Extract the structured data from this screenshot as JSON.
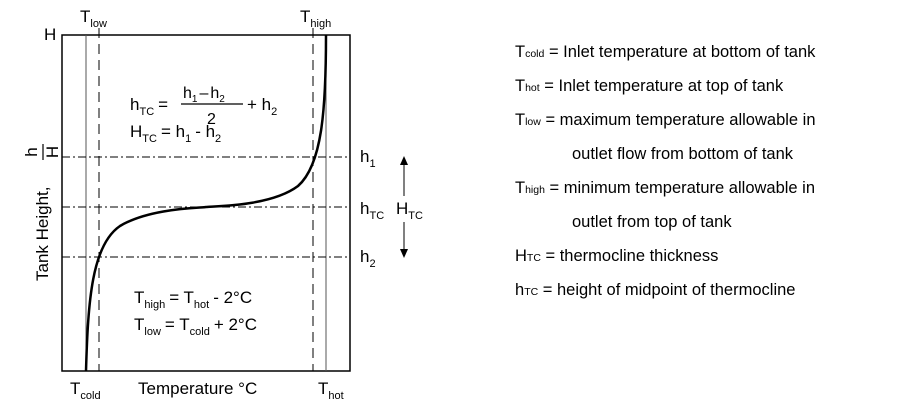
{
  "diagram": {
    "axis_ylabel": "Tank Height,",
    "axis_ylabel_frac": {
      "num": "h",
      "den": "H"
    },
    "xlabel": "Temperature °C",
    "top_label": "H",
    "t_low": {
      "main": "T",
      "sub": "low"
    },
    "t_high": {
      "main": "T",
      "sub": "high"
    },
    "t_cold": {
      "main": "T",
      "sub": "cold"
    },
    "t_hot": {
      "main": "T",
      "sub": "hot"
    },
    "h1": {
      "main": "h",
      "sub": "1"
    },
    "h2": {
      "main": "h",
      "sub": "2"
    },
    "htc": {
      "main": "h",
      "sub": "TC"
    },
    "Htc": {
      "main": "H",
      "sub": "TC"
    },
    "eq1": {
      "lhs_main": "h",
      "lhs_sub": "TC",
      "eq": "=",
      "num": "h",
      "num_sub1": "1",
      "minus": "–",
      "num_sub2": "2",
      "den": "2",
      "plus": "+ h",
      "plus_sub": "2"
    },
    "eq2": {
      "main": "H",
      "sub": "TC",
      "rest": "= h",
      "s1": "1",
      "mid": "- h",
      "s2": "2"
    },
    "eq3": {
      "main": "T",
      "sub": "high",
      "mid": "= T",
      "sub2": "hot",
      "rest": "- 2°C"
    },
    "eq4": {
      "main": "T",
      "sub": "low",
      "mid": "= T",
      "sub2": "cold",
      "rest": "+ 2°C"
    }
  },
  "legend": [
    {
      "main": "T",
      "sub": "cold",
      "text": " = Inlet temperature at bottom of tank"
    },
    {
      "main": "T",
      "sub": "hot",
      "text": " = Inlet temperature at top of tank"
    },
    {
      "main": "T",
      "sub": "low",
      "text": " = maximum temperature allowable in"
    },
    {
      "main": "",
      "sub": "",
      "text": "outlet flow from bottom of tank"
    },
    {
      "main": "T",
      "sub": "high",
      "text": " = minimum temperature allowable in"
    },
    {
      "main": "",
      "sub": "",
      "text": "outlet from top of tank"
    },
    {
      "main": "H",
      "sub": "TC",
      "text": " = thermocline thickness"
    },
    {
      "main": "h",
      "sub": "TC",
      "text": " = height of midpoint of thermocline"
    }
  ]
}
